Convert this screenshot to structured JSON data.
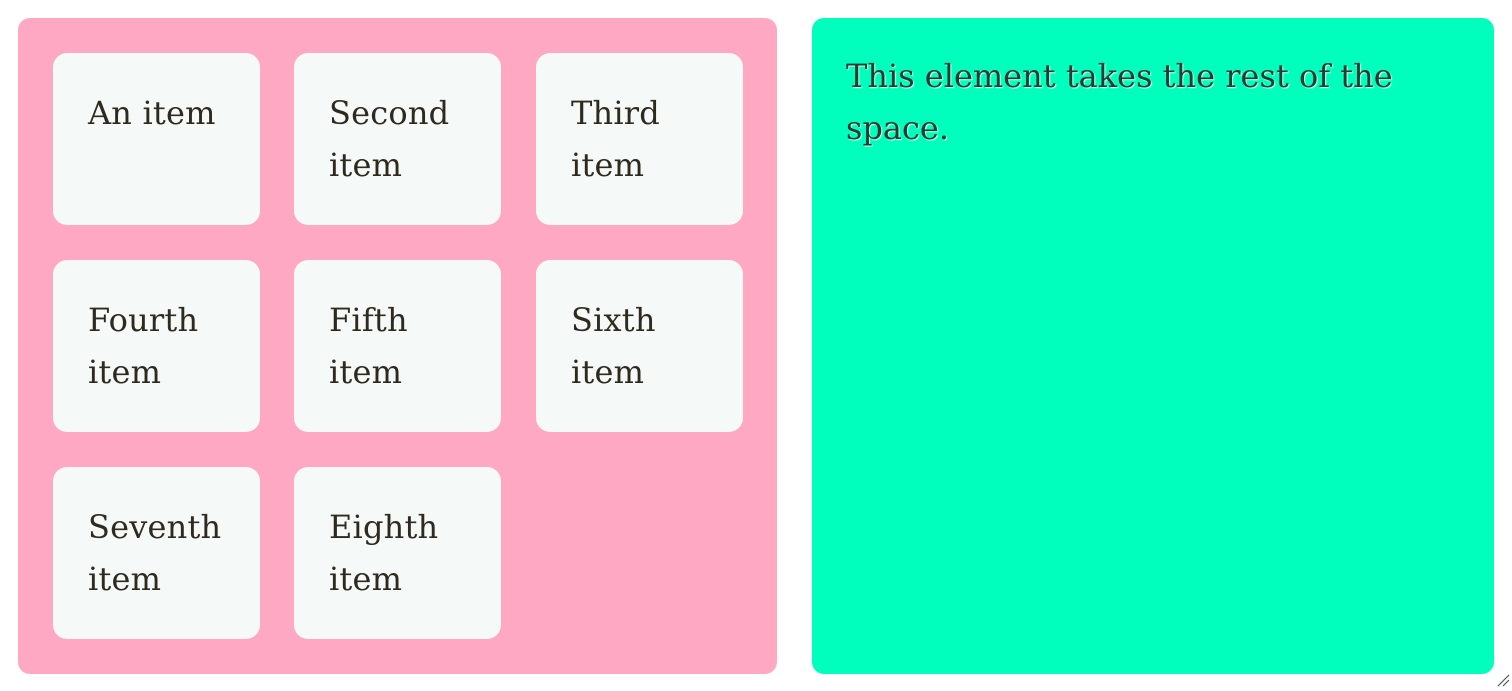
{
  "grid": {
    "items": [
      {
        "label": "An item"
      },
      {
        "label": "Second item"
      },
      {
        "label": "Third item"
      },
      {
        "label": "Fourth item"
      },
      {
        "label": "Fifth item"
      },
      {
        "label": "Sixth item"
      },
      {
        "label": "Seventh item"
      },
      {
        "label": "Eighth item"
      }
    ]
  },
  "rest": {
    "text": "This element takes the rest of the space."
  },
  "colors": {
    "grid_background": "#ffa8c3",
    "card_background": "#f5f9f7",
    "rest_background": "#00ffbc",
    "text": "#2f2a1e"
  },
  "icons": {
    "resize": "resize-handle-icon"
  }
}
